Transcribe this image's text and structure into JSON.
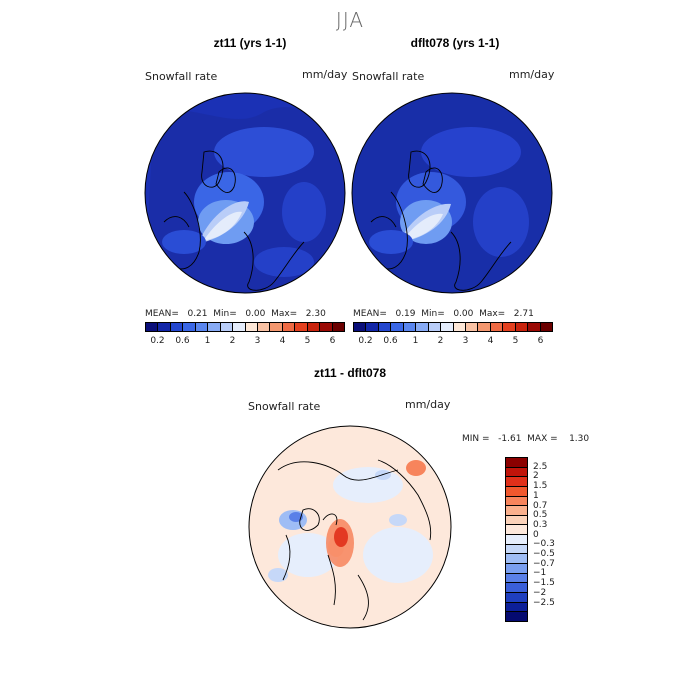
{
  "season": "JJA",
  "panel_left": {
    "title": "zt11 (yrs 1-1)",
    "variable": "Snowfall rate",
    "units": "mm/day",
    "stats": "MEAN=   0.21  Min=   0.00  Max=   2.30"
  },
  "panel_right": {
    "title": "dflt078 (yrs 1-1)",
    "variable": "Snowfall rate",
    "units": "mm/day",
    "stats": "MEAN=   0.19  Min=   0.00  Max=   2.71"
  },
  "panel_diff": {
    "title": "zt11 - dflt078",
    "variable": "Snowfall rate",
    "units": "mm/day",
    "minmax": "MIN =   -1.61  MAX =    1.30"
  },
  "colorbar_top": {
    "colors": [
      "#0a0f7a",
      "#1226a8",
      "#2447cf",
      "#3a67e6",
      "#5a86ef",
      "#88abf5",
      "#b9cdf8",
      "#e4ecfb",
      "#fde7d7",
      "#f9c2a4",
      "#f49870",
      "#ee6a44",
      "#e3401f",
      "#c8230d",
      "#9a0a05",
      "#6b0000"
    ],
    "ticks": [
      "0.2",
      "0.6",
      "1",
      "2",
      "3",
      "4",
      "5",
      "6"
    ]
  },
  "colorbar_diff": {
    "colors": [
      "#8b0000",
      "#c0140a",
      "#e0301a",
      "#f0582e",
      "#f7845c",
      "#fab08d",
      "#fbd2b9",
      "#fde8db",
      "#e6eefc",
      "#c6d8f8",
      "#9fbdf5",
      "#7a9ff0",
      "#5a80e8",
      "#3a5fd9",
      "#1f3fbf",
      "#0c1f99",
      "#050a70"
    ],
    "ticks": [
      "2.5",
      "2",
      "1.5",
      "1",
      "0.7",
      "0.5",
      "0.3",
      "0",
      "−0.3",
      "−0.5",
      "−0.7",
      "−1",
      "−1.5",
      "−2",
      "−2.5"
    ]
  }
}
